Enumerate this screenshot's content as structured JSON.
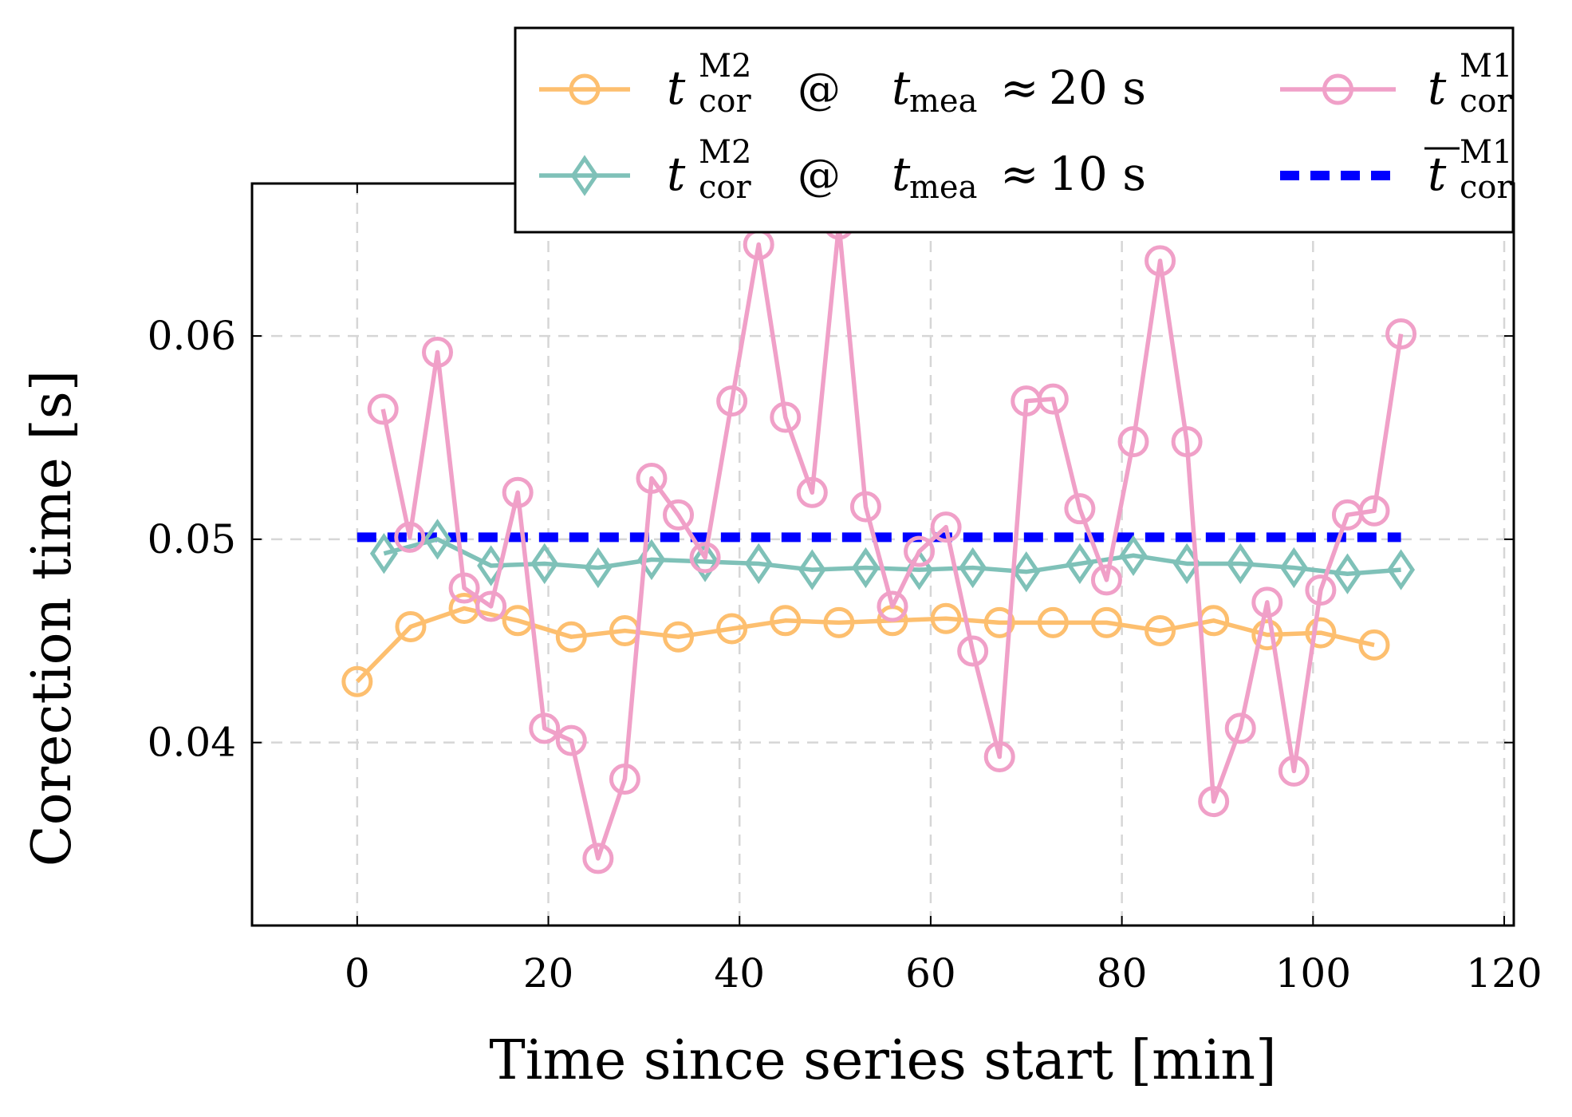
{
  "chart_data": {
    "type": "line",
    "xlabel": "Time since series start [min]",
    "ylabel": "Corection time [s]",
    "xlim": [
      -11,
      121
    ],
    "ylim": [
      0.031,
      0.0675
    ],
    "xticks": [
      0,
      20,
      40,
      60,
      80,
      100,
      120
    ],
    "xtick_labels": [
      "0",
      "20",
      "40",
      "60",
      "80",
      "100",
      "120"
    ],
    "yticks": [
      0.04,
      0.05,
      0.06
    ],
    "ytick_labels": [
      "0.04",
      "0.05",
      "0.06"
    ],
    "grid": true,
    "legend_position": "top-right",
    "series": [
      {
        "legend": {
          "symbol": "t",
          "sub": "cor",
          "sup": "M2",
          "at": "@",
          "cond_symbol": "t",
          "cond_sub": "mea",
          "cond_rel": "≈",
          "cond_value": "20 s"
        },
        "color": "#fdbf6f",
        "marker": "circle",
        "dash": "solid",
        "x": [
          0,
          5.6,
          11.2,
          16.8,
          22.4,
          28,
          33.6,
          39.2,
          44.8,
          50.4,
          56,
          61.6,
          67.2,
          72.8,
          78.4,
          84,
          89.6,
          95.2,
          100.8,
          106.4
        ],
        "y": [
          0.043,
          0.0457,
          0.0466,
          0.046,
          0.0452,
          0.0455,
          0.0452,
          0.0456,
          0.046,
          0.0459,
          0.046,
          0.0461,
          0.0459,
          0.0459,
          0.0459,
          0.0455,
          0.046,
          0.0453,
          0.0454,
          0.0448
        ]
      },
      {
        "legend": {
          "symbol": "t",
          "sub": "cor",
          "sup": "M2",
          "at": "@",
          "cond_symbol": "t",
          "cond_sub": "mea",
          "cond_rel": "≈",
          "cond_value": "10 s"
        },
        "color": "#7fc1b8",
        "marker": "diamond",
        "dash": "solid",
        "x": [
          2.8,
          8.4,
          14,
          19.6,
          25.2,
          30.8,
          36.4,
          42,
          47.6,
          53.2,
          58.8,
          64.4,
          70,
          75.6,
          81.2,
          86.8,
          92.4,
          98,
          103.6,
          109.2
        ],
        "y": [
          0.0493,
          0.05,
          0.0487,
          0.0488,
          0.0486,
          0.049,
          0.0489,
          0.0488,
          0.0485,
          0.0486,
          0.0485,
          0.0486,
          0.0484,
          0.0488,
          0.0492,
          0.0488,
          0.0488,
          0.0486,
          0.0483,
          0.0485
        ]
      },
      {
        "legend": {
          "symbol": "t",
          "sub": "cor",
          "sup": "M1"
        },
        "color": "#f0a0c8",
        "marker": "circle",
        "dash": "solid",
        "x": [
          2.7,
          5.5,
          8.4,
          11.2,
          14,
          16.8,
          19.6,
          22.4,
          25.2,
          28,
          30.8,
          33.6,
          36.4,
          39.2,
          42,
          44.8,
          47.6,
          50.4,
          53.2,
          56,
          58.8,
          61.6,
          64.4,
          67.2,
          70,
          72.8,
          75.6,
          78.4,
          81.2,
          84,
          86.8,
          89.6,
          92.4,
          95.2,
          98,
          100.8,
          103.6,
          106.4,
          109.2
        ],
        "y": [
          0.0564,
          0.0501,
          0.0592,
          0.0476,
          0.0467,
          0.0523,
          0.0407,
          0.0401,
          0.0343,
          0.0382,
          0.053,
          0.0512,
          0.0491,
          0.0568,
          0.0645,
          0.056,
          0.0523,
          0.0655,
          0.0516,
          0.0467,
          0.0494,
          0.0506,
          0.0445,
          0.0393,
          0.0568,
          0.0569,
          0.0515,
          0.048,
          0.0548,
          0.0637,
          0.0548,
          0.0371,
          0.0407,
          0.0469,
          0.0386,
          0.0475,
          0.0512,
          0.0514,
          0.0601
        ]
      },
      {
        "legend": {
          "symbol": "t",
          "overline": true,
          "sub": "cor",
          "sup": "M1"
        },
        "color": "#0000ff",
        "marker": "none",
        "dash": "dashed",
        "x": [
          0,
          109.2
        ],
        "y": [
          0.0501,
          0.0501
        ]
      }
    ]
  }
}
